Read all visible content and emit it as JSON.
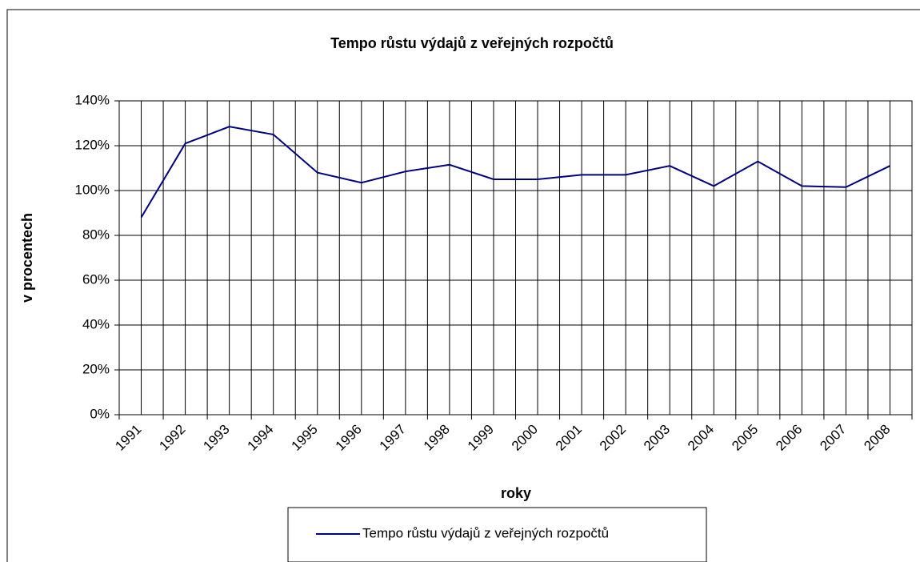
{
  "chart_data": {
    "type": "line",
    "title": "Tempo růstu výdajů z veřejných rozpočtů",
    "x_label": "roky",
    "y_label": "v procentech",
    "categories": [
      "1991",
      "1992",
      "1993",
      "1994",
      "1995",
      "1996",
      "1997",
      "1998",
      "1999",
      "2000",
      "2001",
      "2002",
      "2003",
      "2004",
      "2005",
      "2006",
      "2007",
      "2008"
    ],
    "series": [
      {
        "name": "Tempo růstu výdajů z veřejných rozpočtů",
        "color": "#000080",
        "values": [
          88,
          121,
          128.5,
          125,
          108,
          103.5,
          108.5,
          111.5,
          105,
          105,
          107,
          107,
          111,
          102,
          113,
          102,
          101.5,
          111
        ]
      }
    ],
    "ylim": [
      0,
      140
    ],
    "yticks": [
      {
        "value": 0,
        "label": "0%"
      },
      {
        "value": 20,
        "label": "20%"
      },
      {
        "value": 40,
        "label": "40%"
      },
      {
        "value": 60,
        "label": "60%"
      },
      {
        "value": 80,
        "label": "80%"
      },
      {
        "value": 100,
        "label": "100%"
      },
      {
        "value": 120,
        "label": "120%"
      },
      {
        "value": 140,
        "label": "140%"
      }
    ],
    "grid": true,
    "legend": "bottom"
  }
}
